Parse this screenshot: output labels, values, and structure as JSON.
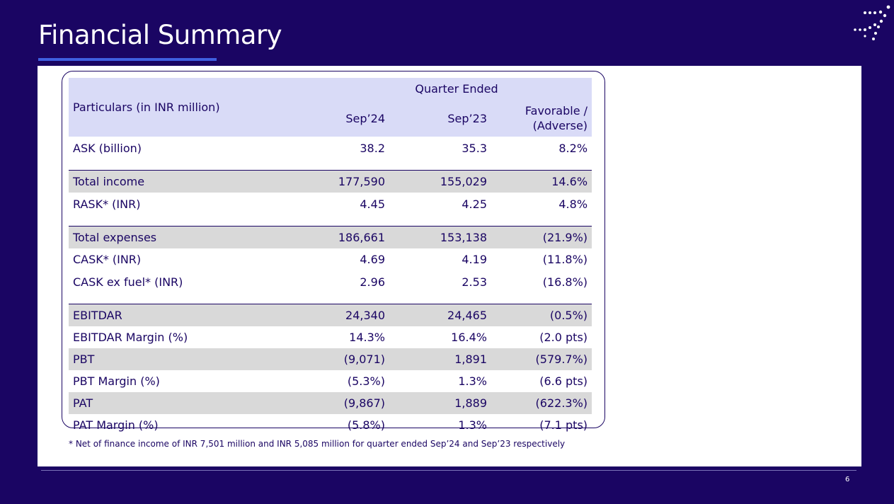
{
  "slide": {
    "title": "Financial Summary",
    "page_number": "6"
  },
  "table": {
    "header": {
      "particulars": "Particulars (in INR million)",
      "group": "Quarter Ended",
      "col1": "Sep’24",
      "col2": "Sep’23",
      "col3": "Favorable / (Adverse)"
    },
    "rows": [
      {
        "label": "ASK (billion)",
        "sep24": "38.2",
        "sep23": "35.3",
        "change": "8.2%"
      },
      {
        "label": "Total income",
        "sep24": "177,590",
        "sep23": "155,029",
        "change": "14.6%"
      },
      {
        "label": "RASK* (INR)",
        "sep24": "4.45",
        "sep23": "4.25",
        "change": "4.8%"
      },
      {
        "label": "Total expenses",
        "sep24": "186,661",
        "sep23": "153,138",
        "change": "(21.9%)"
      },
      {
        "label": "CASK* (INR)",
        "sep24": "4.69",
        "sep23": "4.19",
        "change": "(11.8%)"
      },
      {
        "label": "CASK ex fuel* (INR)",
        "sep24": "2.96",
        "sep23": "2.53",
        "change": "(16.8%)"
      },
      {
        "label": "EBITDAR",
        "sep24": "24,340",
        "sep23": "24,465",
        "change": "(0.5%)"
      },
      {
        "label": "EBITDAR Margin (%)",
        "sep24": "14.3%",
        "sep23": "16.4%",
        "change": "(2.0 pts)"
      },
      {
        "label": "PBT",
        "sep24": "(9,071)",
        "sep23": "1,891",
        "change": "(579.7%)"
      },
      {
        "label": "PBT Margin (%)",
        "sep24": "(5.3%)",
        "sep23": "1.3%",
        "change": "(6.6 pts)"
      },
      {
        "label": "PAT",
        "sep24": "(9,867)",
        "sep23": "1,889",
        "change": "(622.3%)"
      },
      {
        "label": "PAT Margin (%)",
        "sep24": "(5.8%)",
        "sep23": "1.3%",
        "change": "(7.1 pts)"
      }
    ]
  },
  "footnote": "* Net of finance income of INR 7,501 million and INR 5,085 million for quarter ended Sep’24 and Sep’23 respectively",
  "colors": {
    "background": "#1a0563",
    "header_fill": "#d9dbf7",
    "row_shade": "#d9d9d9",
    "accent_underline": "#3f5fe0",
    "text": "#1a0563"
  },
  "icons": {
    "logo": "dotted-arrow-logo-icon"
  }
}
